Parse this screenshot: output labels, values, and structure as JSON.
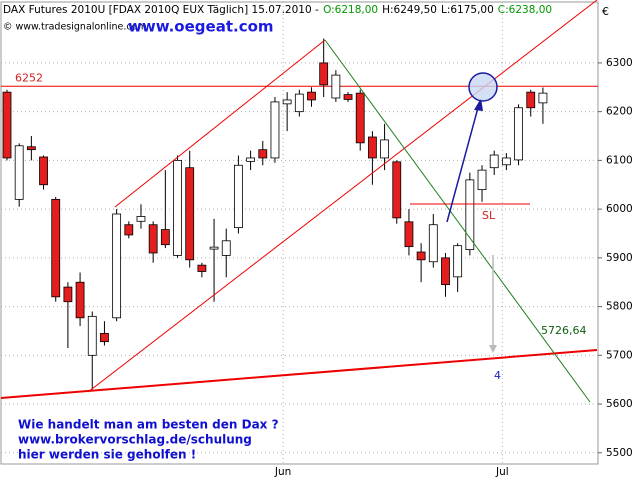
{
  "chart_data": {
    "type": "candlestick",
    "title": "DAX Futures 2010U [FDAX 2010Q EUX  Täglich] 15.07.2010 -",
    "title_values": [
      {
        "label": "O:6218,00",
        "color": "#009900"
      },
      {
        "label": "H:6249,50",
        "color": "#000000"
      },
      {
        "label": "L:6175,00",
        "color": "#000000"
      },
      {
        "label": "C:6238,00",
        "color": "#009900"
      }
    ],
    "source": "© www.tradesignalonline.com",
    "site": "www.oegeat.com",
    "currency": "€",
    "categories": [
      null,
      null,
      null,
      null,
      null,
      null,
      null,
      null,
      null,
      null,
      null,
      null,
      null,
      null,
      null,
      null,
      null,
      null,
      null,
      null,
      null,
      null,
      null,
      "Jun",
      null,
      null,
      null,
      null,
      null,
      null,
      null,
      null,
      null,
      null,
      null,
      null,
      null,
      null,
      null,
      null,
      null,
      "Jul",
      null,
      null,
      null
    ],
    "open": [
      6240,
      6020,
      6128,
      6107,
      6020,
      5840,
      5850,
      5700,
      5745,
      5777,
      5968,
      5975,
      5968,
      5958,
      5905,
      6085,
      5885,
      5918,
      5905,
      5962,
      6098,
      6122,
      6105,
      6216,
      6200,
      6240,
      6300,
      6228,
      6235,
      6238,
      6148,
      6105,
      6097,
      5974,
      5912,
      5892,
      5900,
      5861,
      5917,
      6040,
      6085,
      6091,
      6101,
      6240,
      6218
    ],
    "high": [
      6245,
      6135,
      6150,
      6110,
      6025,
      5850,
      5870,
      5790,
      5770,
      6000,
      5975,
      6010,
      5975,
      6080,
      6110,
      6120,
      5890,
      5980,
      5960,
      6110,
      6120,
      6140,
      6230,
      6240,
      6245,
      6250,
      6350,
      6285,
      6240,
      6245,
      6160,
      6175,
      6100,
      6000,
      5930,
      5990,
      5910,
      5930,
      6075,
      6090,
      6120,
      6115,
      6215,
      6245,
      6249.5
    ],
    "low": [
      6100,
      6005,
      6100,
      6040,
      5810,
      5715,
      5760,
      5630,
      5720,
      5770,
      5940,
      5960,
      5890,
      5920,
      5900,
      5880,
      5860,
      5810,
      5860,
      5950,
      6080,
      6090,
      6095,
      6160,
      6190,
      6210,
      6230,
      6220,
      6220,
      6120,
      6050,
      6080,
      5970,
      5905,
      5850,
      5880,
      5820,
      5830,
      5905,
      6015,
      6070,
      6080,
      6090,
      6190,
      6175
    ],
    "close": [
      6105,
      6130,
      6122,
      6050,
      5820,
      5810,
      5777,
      5780,
      5728,
      5990,
      5947,
      5985,
      5910,
      5927,
      6100,
      5896,
      5872,
      5922,
      5935,
      6090,
      6105,
      6105,
      6220,
      6224,
      6236,
      6224,
      6255,
      6275,
      6225,
      6136,
      6105,
      6142,
      5982,
      5923,
      5896,
      5968,
      5845,
      5925,
      6060,
      6080,
      6111,
      6105,
      6208,
      6208,
      6238
    ],
    "up_color": "#ffffff",
    "down_color": "#e31e1e",
    "ylim": [
      5477,
      6425
    ],
    "yticks": [
      5500,
      5600,
      5700,
      5800,
      5900,
      6000,
      6100,
      6200,
      6300
    ],
    "grid": true,
    "levels": [
      6252
    ],
    "annotations": [
      "SL",
      "5726,64",
      "4"
    ],
    "footer": [
      "Wie handelt man am besten den Dax ?",
      "www.brokervorschlag.de/schulung",
      "hier werden sie geholfen !"
    ]
  }
}
